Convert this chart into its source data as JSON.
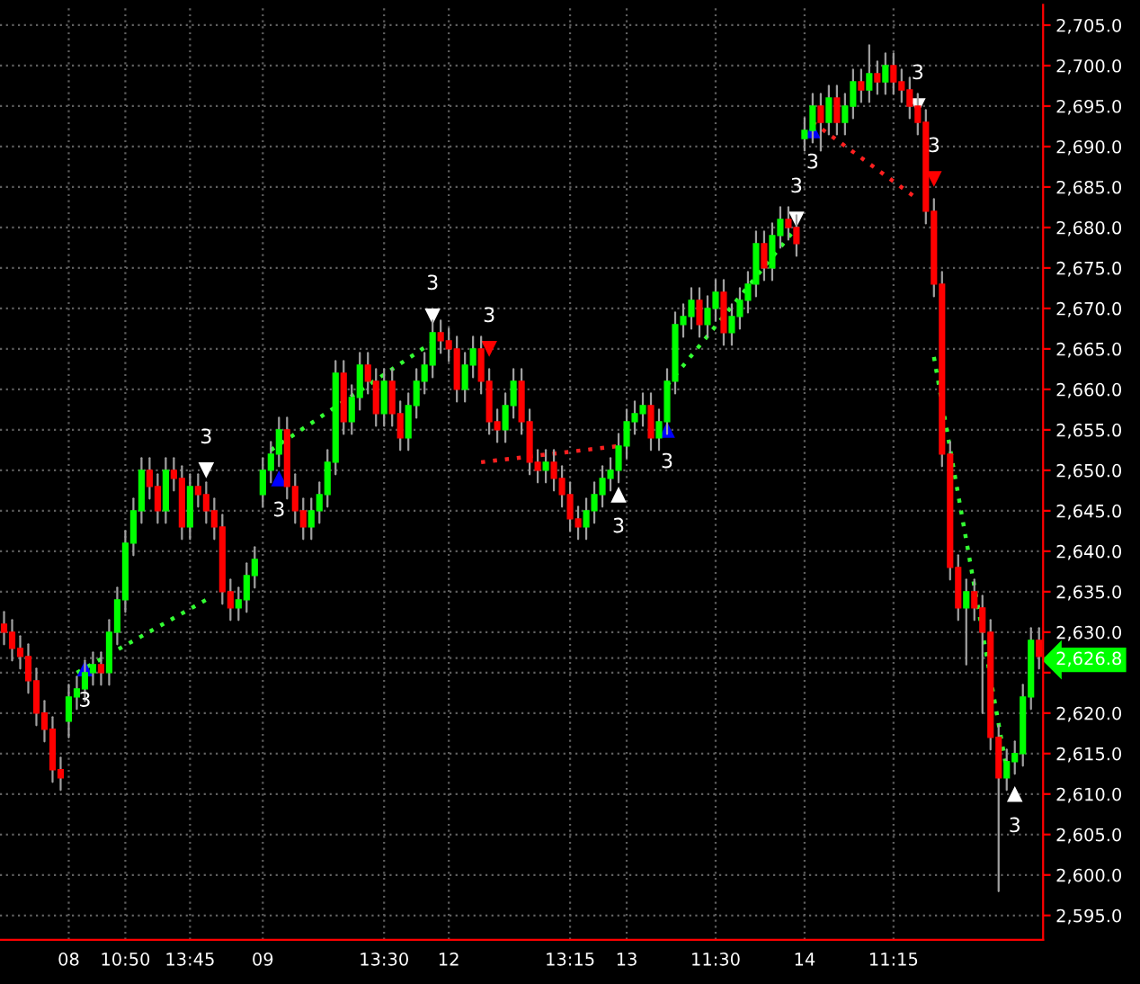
{
  "chart_data": {
    "type": "candlestick",
    "categories": [
      null,
      null,
      null,
      null,
      null,
      null,
      null,
      null,
      "08",
      null,
      null,
      null,
      null,
      null,
      null,
      "10:50",
      null,
      null,
      null,
      null,
      null,
      null,
      null,
      "13:45",
      null,
      null,
      null,
      null,
      null,
      null,
      null,
      null,
      "09",
      null,
      null,
      null,
      null,
      null,
      null,
      null,
      null,
      null,
      null,
      null,
      null,
      null,
      null,
      "13:30",
      null,
      null,
      null,
      null,
      null,
      null,
      null,
      "12",
      null,
      null,
      null,
      null,
      null,
      null,
      null,
      null,
      null,
      null,
      null,
      null,
      null,
      null,
      "13:15",
      null,
      null,
      null,
      null,
      null,
      null,
      "13",
      null,
      null,
      null,
      null,
      null,
      null,
      null,
      null,
      null,
      null,
      "11:30",
      null,
      null,
      null,
      null,
      null,
      null,
      null,
      null,
      null,
      null,
      "14",
      null,
      null,
      null,
      null,
      null,
      null,
      null,
      null,
      null,
      null,
      "11:15",
      null,
      null,
      null,
      null,
      null,
      null,
      null,
      null,
      null,
      null,
      null,
      null,
      null,
      null,
      null,
      null,
      null,
      null
    ],
    "ohlc": [
      [
        2631,
        2632.5,
        2628.5,
        2630
      ],
      [
        2630,
        2631.5,
        2626.5,
        2628
      ],
      [
        2628,
        2629.5,
        2625.5,
        2627
      ],
      [
        2627,
        2628.5,
        2622.5,
        2624
      ],
      [
        2624,
        2625.5,
        2618.5,
        2620
      ],
      [
        2620,
        2621.5,
        2616.5,
        2618
      ],
      [
        2618,
        2619.5,
        2611.5,
        2613
      ],
      [
        2613,
        2614.5,
        2610.5,
        2612
      ],
      [
        2619,
        2623.5,
        2617,
        2622
      ],
      [
        2622,
        2624.5,
        2620.5,
        2623
      ],
      [
        2623,
        2626.5,
        2621.5,
        2625
      ],
      [
        2625,
        2627.5,
        2623.5,
        2626
      ],
      [
        2626,
        2627.5,
        2623.5,
        2625
      ],
      [
        2625,
        2631.5,
        2623.5,
        2630
      ],
      [
        2630,
        2635.5,
        2628.5,
        2634
      ],
      [
        2634,
        2642.5,
        2632.5,
        2641
      ],
      [
        2641,
        2646.5,
        2639.5,
        2645
      ],
      [
        2645,
        2651.5,
        2643.5,
        2650
      ],
      [
        2650,
        2651.5,
        2646.5,
        2648
      ],
      [
        2648,
        2649.5,
        2643.5,
        2645
      ],
      [
        2645,
        2651.5,
        2643.5,
        2650
      ],
      [
        2650,
        2651.5,
        2647.5,
        2649
      ],
      [
        2649,
        2650.5,
        2641.5,
        2643
      ],
      [
        2643,
        2649.5,
        2641.5,
        2648
      ],
      [
        2648,
        2649.5,
        2645.5,
        2647
      ],
      [
        2647,
        2648.5,
        2643.5,
        2645
      ],
      [
        2645,
        2646.5,
        2641.5,
        2643
      ],
      [
        2643,
        2644.5,
        2633.5,
        2635
      ],
      [
        2635,
        2636.5,
        2631.5,
        2633
      ],
      [
        2633,
        2635.5,
        2631.5,
        2634
      ],
      [
        2634,
        2638.5,
        2632.5,
        2637
      ],
      [
        2637,
        2640.5,
        2635.5,
        2639
      ],
      [
        2647,
        2651.5,
        2645.5,
        2650
      ],
      [
        2650,
        2653.5,
        2648.5,
        2652
      ],
      [
        2652,
        2656.5,
        2650.5,
        2655
      ],
      [
        2655,
        2656.5,
        2646.5,
        2648
      ],
      [
        2648,
        2649.5,
        2643.5,
        2645
      ],
      [
        2645,
        2646.5,
        2641.5,
        2643
      ],
      [
        2643,
        2646.5,
        2641.5,
        2645
      ],
      [
        2645,
        2648.5,
        2643.5,
        2647
      ],
      [
        2647,
        2652.5,
        2645.5,
        2651
      ],
      [
        2651,
        2663.5,
        2649.5,
        2662
      ],
      [
        2662,
        2663.5,
        2654.5,
        2656
      ],
      [
        2656,
        2660.5,
        2654.5,
        2659
      ],
      [
        2659,
        2664.5,
        2657.5,
        2663
      ],
      [
        2663,
        2664.5,
        2659.5,
        2661
      ],
      [
        2661,
        2662.5,
        2655.5,
        2657
      ],
      [
        2657,
        2662.5,
        2655.5,
        2661
      ],
      [
        2661,
        2662.5,
        2655.5,
        2657
      ],
      [
        2657,
        2658.5,
        2652.5,
        2654
      ],
      [
        2654,
        2659.5,
        2652.5,
        2658
      ],
      [
        2658,
        2662.5,
        2656.5,
        2661
      ],
      [
        2661,
        2664.5,
        2659.5,
        2663
      ],
      [
        2663,
        2668.5,
        2661.5,
        2667
      ],
      [
        2667,
        2668.5,
        2664.5,
        2666
      ],
      [
        2666,
        2667.5,
        2663.5,
        2665
      ],
      [
        2665,
        2666.5,
        2658.5,
        2660
      ],
      [
        2660,
        2664.5,
        2658.5,
        2663
      ],
      [
        2663,
        2666.5,
        2661.5,
        2665
      ],
      [
        2665,
        2666.5,
        2659.5,
        2661
      ],
      [
        2661,
        2662.5,
        2654.5,
        2656
      ],
      [
        2656,
        2657.5,
        2653.5,
        2655
      ],
      [
        2655,
        2659.5,
        2653.5,
        2658
      ],
      [
        2658,
        2662.5,
        2656.5,
        2661
      ],
      [
        2661,
        2662.5,
        2654.5,
        2656
      ],
      [
        2656,
        2657.5,
        2649.5,
        2651
      ],
      [
        2651,
        2652.5,
        2648.5,
        2650
      ],
      [
        2650,
        2652.5,
        2648.5,
        2651
      ],
      [
        2651,
        2652.5,
        2647.5,
        2649
      ],
      [
        2649,
        2650.5,
        2645.5,
        2647
      ],
      [
        2647,
        2648.5,
        2642.5,
        2644
      ],
      [
        2644,
        2645.5,
        2641.5,
        2643
      ],
      [
        2643,
        2646.5,
        2641.5,
        2645
      ],
      [
        2645,
        2648.5,
        2643.5,
        2647
      ],
      [
        2647,
        2650.5,
        2645.5,
        2649
      ],
      [
        2649,
        2651.5,
        2647.5,
        2650
      ],
      [
        2650,
        2654.5,
        2648.5,
        2653
      ],
      [
        2653,
        2657.5,
        2651.5,
        2656
      ],
      [
        2656,
        2658.5,
        2654.5,
        2657
      ],
      [
        2657,
        2659.5,
        2655.5,
        2658
      ],
      [
        2658,
        2659.5,
        2652.5,
        2654
      ],
      [
        2654,
        2657.5,
        2652.5,
        2656
      ],
      [
        2656,
        2662.5,
        2654.5,
        2661
      ],
      [
        2661,
        2669.5,
        2659.5,
        2668
      ],
      [
        2668,
        2670.5,
        2666.5,
        2669
      ],
      [
        2669,
        2672.5,
        2667.5,
        2671
      ],
      [
        2671,
        2672.5,
        2666.5,
        2668
      ],
      [
        2668,
        2671.5,
        2666.5,
        2670
      ],
      [
        2670,
        2673.5,
        2668.5,
        2672
      ],
      [
        2672,
        2673.5,
        2665.5,
        2667
      ],
      [
        2667,
        2670.5,
        2665.5,
        2669
      ],
      [
        2669,
        2672.5,
        2667.5,
        2671
      ],
      [
        2671,
        2674.5,
        2669.5,
        2673
      ],
      [
        2673,
        2679.5,
        2671.5,
        2678
      ],
      [
        2678,
        2679.5,
        2673.5,
        2675
      ],
      [
        2675,
        2680.5,
        2673.5,
        2679
      ],
      [
        2679,
        2682.5,
        2677.5,
        2681
      ],
      [
        2681,
        2682.5,
        2678.5,
        2680
      ],
      [
        2680,
        2681.5,
        2676.5,
        2678
      ],
      [
        2691,
        2693.5,
        2689.5,
        2692
      ],
      [
        2692,
        2696.5,
        2690.5,
        2695
      ],
      [
        2695,
        2696.5,
        2689.5,
        2693
      ],
      [
        2693,
        2697.5,
        2691.5,
        2696
      ],
      [
        2696,
        2697.5,
        2691.5,
        2693
      ],
      [
        2693,
        2696.5,
        2691.5,
        2695
      ],
      [
        2695,
        2699.5,
        2693.5,
        2698
      ],
      [
        2698,
        2699.5,
        2695.5,
        2697
      ],
      [
        2697,
        2702.5,
        2695.5,
        2699
      ],
      [
        2699,
        2700.5,
        2696.5,
        2698
      ],
      [
        2698,
        2701.5,
        2696.5,
        2700
      ],
      [
        2700,
        2701.5,
        2696.5,
        2698
      ],
      [
        2698,
        2699.5,
        2695.5,
        2697
      ],
      [
        2697,
        2698.5,
        2693.5,
        2695
      ],
      [
        2695,
        2696.5,
        2691.5,
        2693
      ],
      [
        2693,
        2694.5,
        2680.5,
        2682
      ],
      [
        2682,
        2683.5,
        2671.5,
        2673
      ],
      [
        2673,
        2674.5,
        2650.5,
        2652
      ],
      [
        2652,
        2653.5,
        2636.5,
        2638
      ],
      [
        2638,
        2639.5,
        2631.5,
        2633
      ],
      [
        2633,
        2636.5,
        2626,
        2635
      ],
      [
        2635,
        2636.5,
        2631.5,
        2633
      ],
      [
        2633,
        2634.5,
        2620,
        2630
      ],
      [
        2630,
        2631.5,
        2615.5,
        2617
      ],
      [
        2617,
        2618.5,
        2598,
        2612
      ],
      [
        2612,
        2615.5,
        2610.5,
        2614
      ],
      [
        2614,
        2616.5,
        2612.5,
        2615
      ],
      [
        2615,
        2623.5,
        2613.5,
        2622
      ],
      [
        2622,
        2630.5,
        2620.5,
        2629
      ],
      [
        2629,
        2630.5,
        2625.5,
        2627
      ]
    ],
    "series": [
      {
        "type": "line",
        "line_style": "dotted",
        "color": "#33ff33",
        "values": [
          null,
          null,
          null,
          null,
          null,
          null,
          null,
          null,
          null,
          2625,
          null,
          null,
          null,
          null,
          null,
          null,
          null,
          null,
          null,
          null,
          null,
          null,
          null,
          null,
          null,
          2634,
          null,
          null,
          null,
          null,
          null,
          null,
          null,
          null,
          null,
          null,
          null,
          null,
          null,
          null,
          null,
          null,
          null,
          null,
          null,
          null,
          null,
          null,
          null,
          null,
          null,
          null,
          null,
          null,
          null,
          null,
          null,
          null,
          null,
          null,
          null,
          null,
          null,
          null,
          null,
          null,
          null,
          null,
          null,
          null,
          null,
          null,
          null,
          null,
          null,
          null,
          null,
          null,
          null,
          null,
          null,
          null,
          null,
          null,
          null,
          null,
          null,
          null,
          null,
          null,
          null,
          null,
          null,
          null,
          null,
          null,
          null,
          null,
          null,
          null,
          null,
          null,
          null,
          null,
          null,
          null,
          null,
          null,
          null,
          null,
          null,
          null,
          null,
          null,
          null,
          null,
          null,
          null,
          null,
          null,
          null,
          null,
          null,
          null,
          null,
          null,
          null,
          null,
          null
        ]
      },
      {
        "type": "line",
        "line_style": "dotted",
        "color": "#33ff33",
        "values": [
          null,
          null,
          null,
          null,
          null,
          null,
          null,
          null,
          null,
          null,
          null,
          null,
          null,
          null,
          null,
          null,
          null,
          null,
          null,
          null,
          null,
          null,
          null,
          null,
          null,
          null,
          null,
          null,
          null,
          null,
          null,
          null,
          null,
          2652.5,
          null,
          null,
          null,
          null,
          null,
          null,
          null,
          null,
          null,
          null,
          null,
          null,
          null,
          null,
          null,
          null,
          null,
          null,
          null,
          null,
          2666.5,
          null,
          null,
          null,
          null,
          null,
          null,
          null,
          null,
          null,
          null,
          null,
          null,
          null,
          null,
          null,
          null,
          null,
          null,
          null,
          null,
          null,
          null,
          null,
          null,
          null,
          null,
          null,
          null,
          null,
          null,
          null,
          null,
          null,
          null,
          null,
          null,
          null,
          null,
          null,
          null,
          null,
          null,
          null,
          null,
          null,
          null,
          null,
          null,
          null,
          null,
          null,
          null,
          null,
          null,
          null,
          null,
          null,
          null,
          null,
          null,
          null,
          null,
          null,
          null,
          null,
          null,
          null,
          null,
          null,
          null,
          null,
          null,
          null,
          null
        ]
      },
      {
        "type": "line",
        "line_style": "dotted",
        "color": "#ff2020",
        "values": [
          null,
          null,
          null,
          null,
          null,
          null,
          null,
          null,
          null,
          null,
          null,
          null,
          null,
          null,
          null,
          null,
          null,
          null,
          null,
          null,
          null,
          null,
          null,
          null,
          null,
          null,
          null,
          null,
          null,
          null,
          null,
          null,
          null,
          null,
          null,
          null,
          null,
          null,
          null,
          null,
          null,
          null,
          null,
          null,
          null,
          null,
          null,
          null,
          null,
          null,
          null,
          null,
          null,
          null,
          null,
          null,
          null,
          null,
          null,
          2651,
          null,
          null,
          null,
          null,
          null,
          null,
          null,
          null,
          null,
          null,
          null,
          null,
          null,
          null,
          null,
          null,
          2653,
          null,
          null,
          null,
          null,
          null,
          null,
          null,
          null,
          null,
          null,
          null,
          null,
          null,
          null,
          null,
          null,
          null,
          null,
          null,
          null,
          null,
          null,
          null,
          null,
          null,
          null,
          null,
          null,
          null,
          null,
          null,
          null,
          null,
          null,
          null,
          null,
          null,
          null,
          null,
          null,
          null,
          null,
          null,
          null,
          null,
          null,
          null,
          null,
          null,
          null,
          null,
          null
        ]
      },
      {
        "type": "line",
        "line_style": "dotted",
        "color": "#33ff33",
        "values": [
          null,
          null,
          null,
          null,
          null,
          null,
          null,
          null,
          null,
          null,
          null,
          null,
          null,
          null,
          null,
          null,
          null,
          null,
          null,
          null,
          null,
          null,
          null,
          null,
          null,
          null,
          null,
          null,
          null,
          null,
          null,
          null,
          null,
          null,
          null,
          null,
          null,
          null,
          null,
          null,
          null,
          null,
          null,
          null,
          null,
          null,
          null,
          null,
          null,
          null,
          null,
          null,
          null,
          null,
          null,
          null,
          null,
          null,
          null,
          null,
          null,
          null,
          null,
          null,
          null,
          null,
          null,
          null,
          null,
          null,
          null,
          null,
          null,
          null,
          null,
          null,
          null,
          null,
          null,
          null,
          null,
          null,
          2660.5,
          null,
          null,
          null,
          null,
          null,
          null,
          null,
          null,
          null,
          null,
          null,
          null,
          null,
          null,
          null,
          2680,
          null,
          null,
          null,
          null,
          null,
          null,
          null,
          null,
          null,
          null,
          null,
          null,
          null,
          null,
          null,
          null,
          null,
          null,
          null,
          null,
          null,
          null,
          null,
          null,
          null,
          null,
          null,
          null,
          null,
          null
        ]
      },
      {
        "type": "line",
        "line_style": "dotted",
        "color": "#ff2020",
        "values": [
          null,
          null,
          null,
          null,
          null,
          null,
          null,
          null,
          null,
          null,
          null,
          null,
          null,
          null,
          null,
          null,
          null,
          null,
          null,
          null,
          null,
          null,
          null,
          null,
          null,
          null,
          null,
          null,
          null,
          null,
          null,
          null,
          null,
          null,
          null,
          null,
          null,
          null,
          null,
          null,
          null,
          null,
          null,
          null,
          null,
          null,
          null,
          null,
          null,
          null,
          null,
          null,
          null,
          null,
          null,
          null,
          null,
          null,
          null,
          null,
          null,
          null,
          null,
          null,
          null,
          null,
          null,
          null,
          null,
          null,
          null,
          null,
          null,
          null,
          null,
          null,
          null,
          null,
          null,
          null,
          null,
          null,
          null,
          null,
          null,
          null,
          null,
          null,
          null,
          null,
          null,
          null,
          null,
          null,
          null,
          null,
          null,
          null,
          null,
          null,
          2693,
          null,
          null,
          null,
          null,
          null,
          null,
          null,
          null,
          null,
          null,
          null,
          null,
          2683.5,
          null,
          null,
          null,
          null,
          null,
          null,
          null,
          null,
          null,
          null,
          null,
          null,
          null,
          null,
          null
        ]
      },
      {
        "type": "line",
        "line_style": "dotted",
        "color": "#33ff33",
        "values": [
          null,
          null,
          null,
          null,
          null,
          null,
          null,
          null,
          null,
          null,
          null,
          null,
          null,
          null,
          null,
          null,
          null,
          null,
          null,
          null,
          null,
          null,
          null,
          null,
          null,
          null,
          null,
          null,
          null,
          null,
          null,
          null,
          null,
          null,
          null,
          null,
          null,
          null,
          null,
          null,
          null,
          null,
          null,
          null,
          null,
          null,
          null,
          null,
          null,
          null,
          null,
          null,
          null,
          null,
          null,
          null,
          null,
          null,
          null,
          null,
          null,
          null,
          null,
          null,
          null,
          null,
          null,
          null,
          null,
          null,
          null,
          null,
          null,
          null,
          null,
          null,
          null,
          null,
          null,
          null,
          null,
          null,
          null,
          null,
          null,
          null,
          null,
          null,
          null,
          null,
          null,
          null,
          null,
          null,
          null,
          null,
          null,
          null,
          null,
          null,
          null,
          null,
          null,
          null,
          null,
          null,
          null,
          null,
          null,
          null,
          null,
          null,
          null,
          null,
          null,
          2664,
          null,
          null,
          null,
          null,
          null,
          null,
          null,
          null,
          2613,
          null,
          null,
          null,
          null
        ]
      },
      {
        "type": "scatter",
        "marker": "triangle",
        "color": "#0000ff",
        "values": [
          null,
          null,
          null,
          null,
          null,
          null,
          null,
          null,
          null,
          null,
          2625.5,
          null,
          null,
          null,
          null,
          null,
          null,
          null,
          null,
          null,
          null,
          null,
          null,
          null,
          null,
          null,
          null,
          null,
          null,
          null,
          null,
          null,
          null,
          null,
          2649,
          null,
          null,
          null,
          null,
          null,
          null,
          null,
          null,
          null,
          null,
          null,
          null,
          null,
          null,
          null,
          null,
          null,
          null,
          null,
          null,
          null,
          null,
          null,
          null,
          null,
          null,
          null,
          null,
          null,
          null,
          null,
          null,
          null,
          null,
          null,
          null,
          null,
          null,
          null,
          null,
          null,
          null,
          null,
          null,
          null,
          null,
          null,
          2655,
          null,
          null,
          null,
          null,
          null,
          null,
          null,
          null,
          null,
          null,
          null,
          null,
          null,
          null,
          null,
          null,
          null,
          2692,
          null,
          null,
          null,
          null,
          null,
          null,
          null,
          null,
          null,
          null,
          null,
          null,
          null,
          null,
          null,
          null,
          null,
          null,
          null,
          null,
          null,
          null,
          null,
          null,
          null,
          null,
          null,
          null
        ]
      },
      {
        "type": "scatter",
        "marker": "triangle",
        "color": "#ffffff",
        "values": [
          null,
          null,
          null,
          null,
          null,
          null,
          null,
          null,
          null,
          null,
          null,
          null,
          null,
          null,
          null,
          null,
          null,
          null,
          null,
          null,
          null,
          null,
          null,
          null,
          null,
          null,
          null,
          null,
          null,
          null,
          null,
          null,
          null,
          null,
          null,
          null,
          null,
          null,
          null,
          null,
          null,
          null,
          null,
          null,
          null,
          null,
          null,
          null,
          null,
          null,
          null,
          null,
          null,
          null,
          null,
          null,
          null,
          null,
          null,
          null,
          null,
          null,
          null,
          null,
          null,
          null,
          null,
          null,
          null,
          null,
          null,
          null,
          null,
          null,
          null,
          null,
          2647,
          null,
          null,
          null,
          null,
          null,
          null,
          null,
          null,
          null,
          null,
          null,
          null,
          null,
          null,
          null,
          null,
          null,
          null,
          null,
          null,
          null,
          null,
          null,
          null,
          null,
          null,
          null,
          null,
          null,
          null,
          null,
          null,
          null,
          null,
          null,
          null,
          null,
          null,
          null,
          null,
          null,
          null,
          null,
          null,
          null,
          null,
          null,
          null,
          2610,
          null,
          null,
          null
        ]
      },
      {
        "type": "scatter",
        "marker": "triangle_down",
        "color": "#ffffff",
        "values": [
          null,
          null,
          null,
          null,
          null,
          null,
          null,
          null,
          null,
          null,
          null,
          null,
          null,
          null,
          null,
          null,
          null,
          null,
          null,
          null,
          null,
          null,
          null,
          null,
          null,
          2650,
          null,
          null,
          null,
          null,
          null,
          null,
          null,
          null,
          null,
          null,
          null,
          null,
          null,
          null,
          null,
          null,
          null,
          null,
          null,
          null,
          null,
          null,
          null,
          null,
          null,
          null,
          null,
          2669,
          null,
          null,
          null,
          null,
          null,
          null,
          null,
          null,
          null,
          null,
          null,
          null,
          null,
          null,
          null,
          null,
          null,
          null,
          null,
          null,
          null,
          null,
          null,
          null,
          null,
          null,
          null,
          null,
          null,
          null,
          null,
          null,
          null,
          null,
          null,
          null,
          null,
          null,
          null,
          null,
          null,
          null,
          null,
          null,
          2681,
          null,
          null,
          null,
          null,
          null,
          null,
          null,
          null,
          null,
          null,
          null,
          null,
          null,
          null,
          2695,
          null,
          null,
          null,
          null,
          null,
          null,
          null,
          null,
          null,
          null,
          null,
          null,
          null,
          null,
          null
        ]
      },
      {
        "type": "scatter",
        "marker": "triangle_down",
        "color": "#ff0000",
        "values": [
          null,
          null,
          null,
          null,
          null,
          null,
          null,
          null,
          null,
          null,
          null,
          null,
          null,
          null,
          null,
          null,
          null,
          null,
          null,
          null,
          null,
          null,
          null,
          null,
          null,
          null,
          null,
          null,
          null,
          null,
          null,
          null,
          null,
          null,
          null,
          null,
          null,
          null,
          null,
          null,
          null,
          null,
          null,
          null,
          null,
          null,
          null,
          null,
          null,
          null,
          null,
          null,
          null,
          null,
          null,
          null,
          null,
          null,
          null,
          null,
          2665,
          null,
          null,
          null,
          null,
          null,
          null,
          null,
          null,
          null,
          null,
          null,
          null,
          null,
          null,
          null,
          null,
          null,
          null,
          null,
          null,
          null,
          null,
          null,
          null,
          null,
          null,
          null,
          null,
          null,
          null,
          null,
          null,
          null,
          null,
          null,
          null,
          null,
          null,
          null,
          null,
          null,
          null,
          null,
          null,
          null,
          null,
          null,
          null,
          null,
          null,
          null,
          null,
          null,
          null,
          2686,
          null,
          null,
          null,
          null,
          null,
          null,
          null,
          null,
          null,
          null,
          null,
          null,
          null
        ]
      }
    ],
    "annotations": [
      "3",
      "3",
      "3",
      "3",
      "3",
      "3",
      "3",
      "3",
      "3",
      "3",
      "3",
      "3"
    ],
    "ylim": [
      2592,
      2707.5
    ],
    "yticks": [
      {
        "value": 2595,
        "label": "2,595.0"
      },
      {
        "value": 2600,
        "label": "2,600.0"
      },
      {
        "value": 2605,
        "label": "2,605.0"
      },
      {
        "value": 2610,
        "label": "2,610.0"
      },
      {
        "value": 2615,
        "label": "2,615.0"
      },
      {
        "value": 2620,
        "label": "2,620.0"
      },
      {
        "value": 2625,
        "label": null
      },
      {
        "value": 2626.8,
        "label": "2,626.8"
      },
      {
        "value": 2630,
        "label": "2,630.0"
      },
      {
        "value": 2635,
        "label": "2,635.0"
      },
      {
        "value": 2640,
        "label": "2,640.0"
      },
      {
        "value": 2645,
        "label": "2,645.0"
      },
      {
        "value": 2650,
        "label": "2,650.0"
      },
      {
        "value": 2655,
        "label": "2,655.0"
      },
      {
        "value": 2660,
        "label": "2,660.0"
      },
      {
        "value": 2665,
        "label": "2,665.0"
      },
      {
        "value": 2670,
        "label": "2,670.0"
      },
      {
        "value": 2675,
        "label": "2,675.0"
      },
      {
        "value": 2680,
        "label": "2,680.0"
      },
      {
        "value": 2685,
        "label": "2,685.0"
      },
      {
        "value": 2690,
        "label": "2,690.0"
      },
      {
        "value": 2695,
        "label": "2,695.0"
      },
      {
        "value": 2700,
        "label": "2,700.0"
      },
      {
        "value": 2705,
        "label": "2,705.0"
      }
    ],
    "grid": true,
    "legend": false
  }
}
